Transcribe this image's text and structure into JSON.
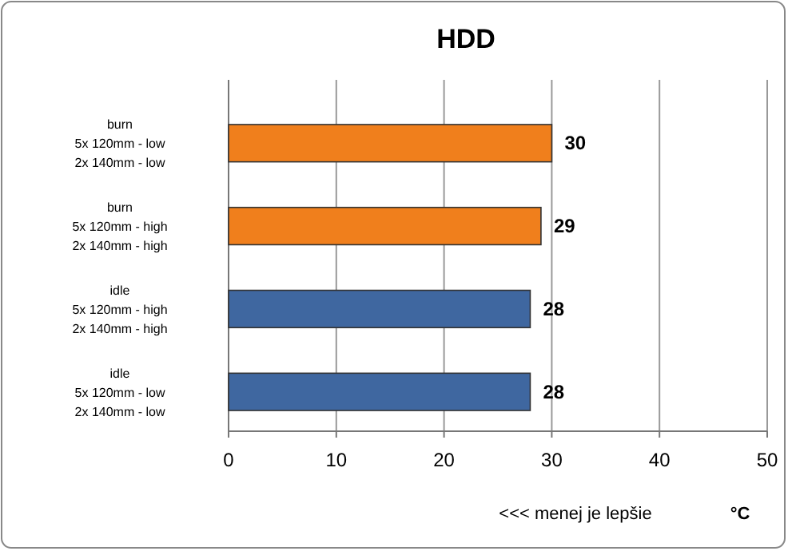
{
  "chart_data": {
    "type": "bar",
    "orientation": "horizontal",
    "title": "HDD",
    "xlabel": "<<< menej je lepšie",
    "annotations": [
      "°C"
    ],
    "categories": [
      "burn\n5x 120mm - low\n2x 140mm - low",
      "burn\n5x 120mm - high\n2x 140mm - high",
      "idle\n5x 120mm - high\n2x 140mm - high",
      "idle\n5x 120mm - low\n2x 140mm - low"
    ],
    "values": [
      30,
      29,
      28,
      28
    ],
    "colors": [
      "#f07f1c",
      "#f07f1c",
      "#3f67a0",
      "#3f67a0"
    ],
    "xlim": [
      0,
      50
    ],
    "xticks": [
      0,
      10,
      20,
      30,
      40,
      50
    ],
    "grid": "x",
    "data_labels": true
  }
}
